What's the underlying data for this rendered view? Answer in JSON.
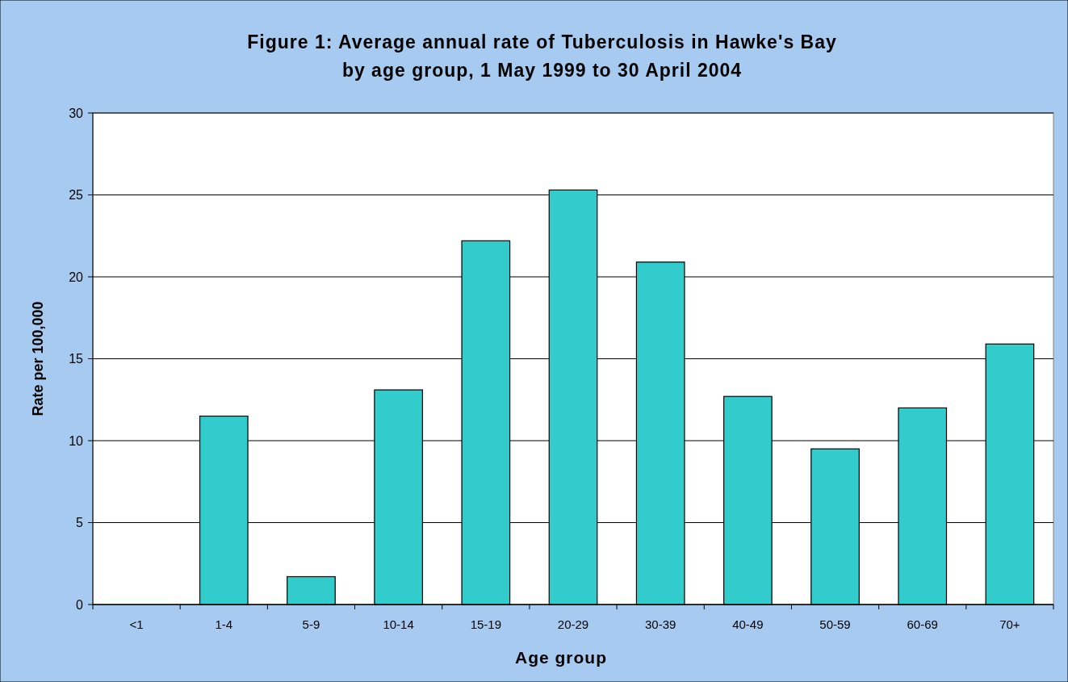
{
  "chart_data": {
    "type": "bar",
    "title": "Figure 1: Average annual rate of Tuberculosis in Hawke's Bay\nby age group, 1 May 1999 to 30 April 2004",
    "xlabel": "Age group",
    "ylabel": "Rate per 100,000",
    "categories": [
      "<1",
      "1-4",
      "5-9",
      "10-14",
      "15-19",
      "20-29",
      "30-39",
      "40-49",
      "50-59",
      "60-69",
      "70+"
    ],
    "values": [
      0,
      11.5,
      1.7,
      13.1,
      22.2,
      25.3,
      20.9,
      12.7,
      9.5,
      12.0,
      15.9
    ],
    "color": "#33cccc",
    "ylim": [
      0,
      30
    ],
    "yticks": [
      0,
      5,
      10,
      15,
      20,
      25,
      30
    ],
    "grid": "y"
  }
}
